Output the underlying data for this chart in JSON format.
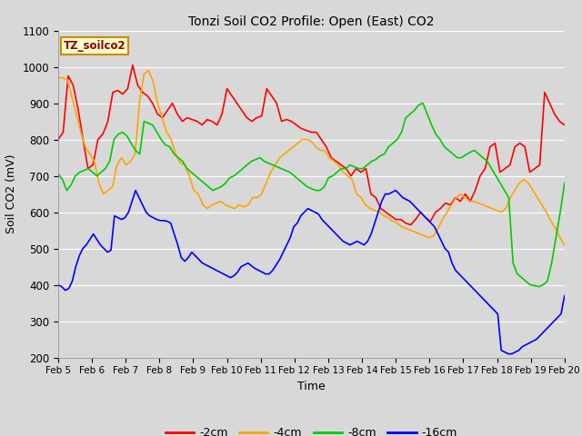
{
  "title": "Tonzi Soil CO2 Profile: Open (East) CO2",
  "xlabel": "Time",
  "ylabel": "Soil CO2 (mV)",
  "ylim": [
    200,
    1100
  ],
  "legend_label": "TZ_soilco2",
  "x_tick_labels": [
    "Feb 5",
    "Feb 6",
    "Feb 7",
    "Feb 8",
    "Feb 9",
    "Feb 10",
    "Feb 11",
    "Feb 12",
    "Feb 13",
    "Feb 14",
    "Feb 15",
    "Feb 16",
    "Feb 17",
    "Feb 18",
    "Feb 19",
    "Feb 20"
  ],
  "series": {
    "-2cm": {
      "color": "#ff0000",
      "data": [
        800,
        820,
        975,
        950,
        885,
        800,
        720,
        730,
        800,
        815,
        850,
        930,
        935,
        925,
        940,
        1005,
        950,
        930,
        920,
        900,
        870,
        860,
        880,
        900,
        870,
        850,
        860,
        855,
        850,
        840,
        855,
        850,
        840,
        870,
        940,
        920,
        900,
        880,
        860,
        850,
        860,
        865,
        940,
        920,
        900,
        850,
        855,
        850,
        840,
        830,
        825,
        820,
        820,
        800,
        780,
        750,
        740,
        730,
        720,
        700,
        720,
        710,
        720,
        650,
        640,
        610,
        600,
        590,
        580,
        580,
        570,
        565,
        580,
        600,
        585,
        575,
        600,
        610,
        625,
        620,
        640,
        630,
        650,
        630,
        660,
        700,
        720,
        780,
        790,
        710,
        720,
        730,
        780,
        790,
        780,
        710,
        720,
        730,
        930,
        900,
        870,
        850,
        840
      ]
    },
    "-4cm": {
      "color": "#ffa500",
      "data": [
        970,
        970,
        965,
        920,
        870,
        820,
        780,
        760,
        740,
        680,
        650,
        660,
        670,
        730,
        750,
        730,
        740,
        760,
        905,
        980,
        990,
        960,
        900,
        860,
        820,
        800,
        760,
        735,
        730,
        700,
        660,
        650,
        620,
        610,
        620,
        625,
        630,
        620,
        615,
        610,
        620,
        615,
        620,
        640,
        640,
        650,
        680,
        710,
        730,
        750,
        760,
        770,
        780,
        790,
        800,
        800,
        795,
        780,
        770,
        770,
        750,
        740,
        730,
        710,
        700,
        690,
        650,
        640,
        620,
        610,
        605,
        600,
        590,
        585,
        575,
        570,
        560,
        555,
        550,
        545,
        540,
        535,
        530,
        535,
        555,
        580,
        600,
        620,
        640,
        650,
        640,
        630,
        630,
        625,
        620,
        615,
        610,
        605,
        600,
        610,
        640,
        660,
        680,
        690,
        680,
        660,
        640,
        620,
        600,
        575,
        555,
        530,
        510
      ]
    },
    "-8cm": {
      "color": "#00cc00",
      "data": [
        705,
        690,
        660,
        675,
        700,
        710,
        715,
        720,
        710,
        700,
        710,
        720,
        740,
        800,
        815,
        820,
        810,
        790,
        770,
        760,
        850,
        845,
        840,
        820,
        800,
        785,
        780,
        760,
        750,
        740,
        720,
        710,
        700,
        690,
        680,
        670,
        660,
        665,
        670,
        680,
        695,
        700,
        710,
        720,
        730,
        740,
        745,
        750,
        740,
        735,
        730,
        725,
        720,
        715,
        710,
        700,
        690,
        680,
        670,
        665,
        660,
        660,
        670,
        695,
        700,
        710,
        720,
        720,
        730,
        725,
        720,
        720,
        730,
        740,
        745,
        755,
        760,
        780,
        790,
        800,
        820,
        860,
        870,
        880,
        895,
        900,
        870,
        840,
        815,
        800,
        780,
        770,
        760,
        750,
        750,
        758,
        765,
        770,
        760,
        750,
        740,
        720,
        700,
        680,
        660,
        640,
        460,
        430,
        420,
        410,
        400,
        398,
        395,
        400,
        410,
        460,
        530,
        600,
        680
      ]
    },
    "-16cm": {
      "color": "#0000ff",
      "data": [
        400,
        395,
        385,
        390,
        410,
        450,
        480,
        500,
        510,
        525,
        540,
        525,
        510,
        500,
        490,
        495,
        590,
        585,
        580,
        585,
        600,
        630,
        660,
        640,
        620,
        600,
        590,
        585,
        580,
        577,
        577,
        575,
        570,
        540,
        510,
        475,
        465,
        475,
        490,
        480,
        470,
        460,
        455,
        450,
        445,
        440,
        435,
        430,
        425,
        420,
        425,
        435,
        450,
        455,
        460,
        452,
        445,
        440,
        435,
        430,
        430,
        440,
        455,
        470,
        490,
        510,
        530,
        560,
        570,
        590,
        600,
        610,
        605,
        600,
        595,
        580,
        570,
        560,
        550,
        540,
        530,
        520,
        515,
        510,
        515,
        520,
        515,
        510,
        520,
        540,
        570,
        600,
        630,
        650,
        650,
        655,
        660,
        650,
        640,
        635,
        630,
        620,
        610,
        600,
        590,
        580,
        570,
        560,
        540,
        520,
        500,
        490,
        460,
        440,
        430,
        420,
        410,
        400,
        390,
        380,
        370,
        360,
        350,
        340,
        330,
        320,
        220,
        215,
        210,
        210,
        215,
        220,
        230,
        235,
        240,
        245,
        250,
        260,
        270,
        280,
        290,
        300,
        310,
        320,
        370
      ]
    }
  }
}
